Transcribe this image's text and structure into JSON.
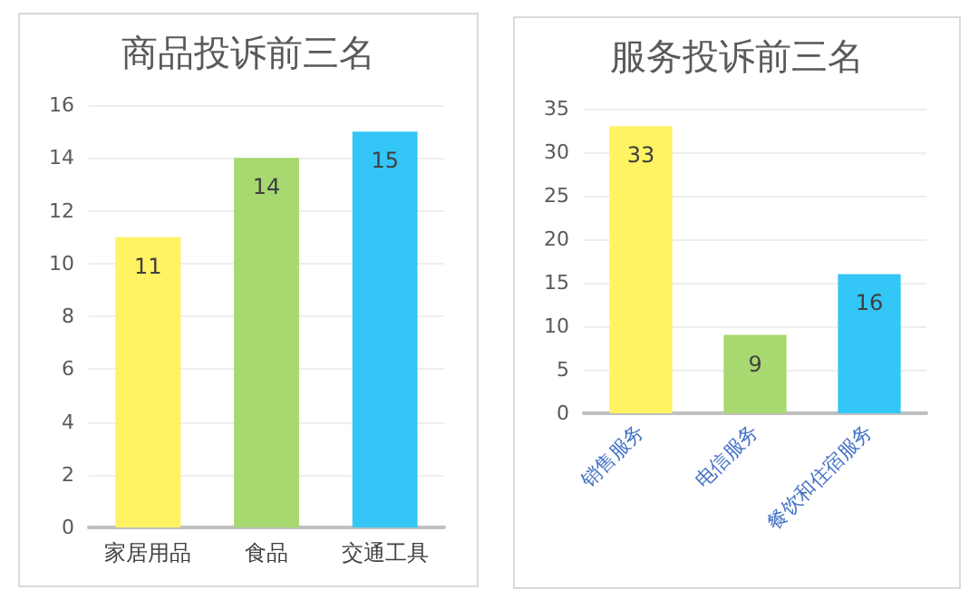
{
  "chart_data": [
    {
      "type": "bar",
      "title": "商品投诉前三名",
      "categories": [
        "家居用品",
        "食品",
        "交通工具"
      ],
      "values": [
        11,
        14,
        15
      ],
      "colors": [
        "#fff263",
        "#a8d870",
        "#33c6f7"
      ],
      "ylim": [
        0,
        16
      ],
      "yticks": [
        0,
        2,
        4,
        6,
        8,
        10,
        12,
        14,
        16
      ],
      "grid": "y",
      "data_labels": true
    },
    {
      "type": "bar",
      "title": "服务投诉前三名",
      "categories": [
        "销售服务",
        "电信服务",
        "餐饮和住宿服务"
      ],
      "values": [
        33,
        9,
        16
      ],
      "colors": [
        "#fff263",
        "#a8d870",
        "#33c6f7"
      ],
      "ylim": [
        0,
        35
      ],
      "yticks": [
        0,
        5,
        10,
        15,
        20,
        25,
        30,
        35
      ],
      "grid": "y",
      "data_labels": true
    }
  ]
}
